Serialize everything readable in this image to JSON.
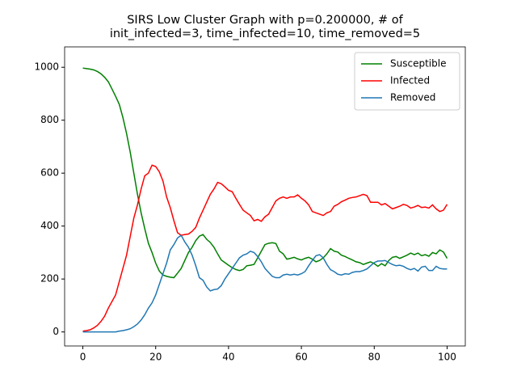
{
  "chart_data": {
    "type": "line",
    "title": [
      "SIRS Low Cluster Graph with p=0.200000, # of",
      "init_infected=3, time_infected=10, time_removed=5"
    ],
    "x": [
      0,
      1,
      2,
      3,
      4,
      5,
      6,
      7,
      8,
      9,
      10,
      11,
      12,
      13,
      14,
      15,
      16,
      17,
      18,
      19,
      20,
      21,
      22,
      23,
      24,
      25,
      26,
      27,
      28,
      29,
      30,
      31,
      32,
      33,
      34,
      35,
      36,
      37,
      38,
      39,
      40,
      41,
      42,
      43,
      44,
      45,
      46,
      47,
      48,
      49,
      50,
      51,
      52,
      53,
      54,
      55,
      56,
      57,
      58,
      59,
      60,
      61,
      62,
      63,
      64,
      65,
      66,
      67,
      68,
      69,
      70,
      71,
      72,
      73,
      74,
      75,
      76,
      77,
      78,
      79,
      80,
      81,
      82,
      83,
      84,
      85,
      86,
      87,
      88,
      89,
      90,
      91,
      92,
      93,
      94,
      95,
      96,
      97,
      98,
      99,
      100
    ],
    "series": [
      {
        "name": "Susceptible",
        "color": "#008000",
        "values": [
          997,
          995,
          993,
          990,
          984,
          975,
          962,
          945,
          918,
          890,
          860,
          810,
          750,
          680,
          600,
          520,
          450,
          390,
          335,
          300,
          260,
          230,
          215,
          210,
          207,
          205,
          222,
          240,
          270,
          300,
          320,
          345,
          362,
          368,
          350,
          338,
          320,
          295,
          272,
          262,
          252,
          243,
          236,
          232,
          236,
          250,
          252,
          255,
          280,
          305,
          330,
          335,
          337,
          334,
          305,
          295,
          275,
          278,
          282,
          276,
          272,
          278,
          282,
          275,
          265,
          270,
          280,
          295,
          315,
          305,
          302,
          290,
          285,
          278,
          272,
          265,
          262,
          255,
          260,
          265,
          258,
          248,
          258,
          250,
          270,
          282,
          285,
          278,
          284,
          290,
          298,
          292,
          298,
          288,
          292,
          286,
          300,
          295,
          310,
          302,
          278
        ]
      },
      {
        "name": "Infected",
        "color": "#ff0000",
        "values": [
          3,
          5,
          8,
          15,
          25,
          40,
          60,
          90,
          115,
          140,
          190,
          240,
          290,
          360,
          430,
          480,
          540,
          590,
          600,
          630,
          625,
          605,
          570,
          510,
          470,
          420,
          375,
          365,
          368,
          370,
          380,
          395,
          430,
          460,
          490,
          520,
          540,
          565,
          560,
          548,
          535,
          530,
          505,
          482,
          460,
          450,
          440,
          420,
          425,
          418,
          435,
          445,
          470,
          495,
          505,
          510,
          505,
          510,
          510,
          518,
          505,
          495,
          480,
          455,
          450,
          445,
          440,
          450,
          455,
          475,
          482,
          492,
          498,
          505,
          508,
          510,
          515,
          520,
          515,
          490,
          490,
          490,
          480,
          485,
          475,
          465,
          470,
          475,
          482,
          478,
          468,
          472,
          478,
          470,
          472,
          468,
          480,
          465,
          455,
          460,
          482
        ]
      },
      {
        "name": "Removed",
        "color": "#1f77b4",
        "values": [
          0,
          0,
          0,
          0,
          0,
          0,
          0,
          0,
          0,
          0,
          3,
          5,
          8,
          12,
          20,
          30,
          45,
          65,
          90,
          110,
          140,
          180,
          220,
          260,
          310,
          330,
          355,
          365,
          340,
          320,
          290,
          250,
          205,
          195,
          170,
          155,
          160,
          162,
          175,
          200,
          220,
          240,
          260,
          280,
          290,
          295,
          305,
          300,
          285,
          265,
          240,
          225,
          210,
          205,
          205,
          215,
          218,
          215,
          218,
          215,
          220,
          228,
          250,
          270,
          288,
          292,
          280,
          255,
          235,
          228,
          218,
          215,
          220,
          218,
          225,
          228,
          228,
          232,
          238,
          250,
          262,
          268,
          268,
          270,
          262,
          255,
          250,
          252,
          248,
          240,
          235,
          240,
          230,
          245,
          248,
          232,
          232,
          248,
          240,
          238,
          238
        ]
      }
    ],
    "xlim": [
      -5,
      105
    ],
    "ylim": [
      -53,
      1077
    ],
    "xticks": [
      0,
      20,
      40,
      60,
      80,
      100
    ],
    "yticks": [
      0,
      200,
      400,
      600,
      800,
      1000
    ],
    "legend": "upper right",
    "grid": false
  }
}
